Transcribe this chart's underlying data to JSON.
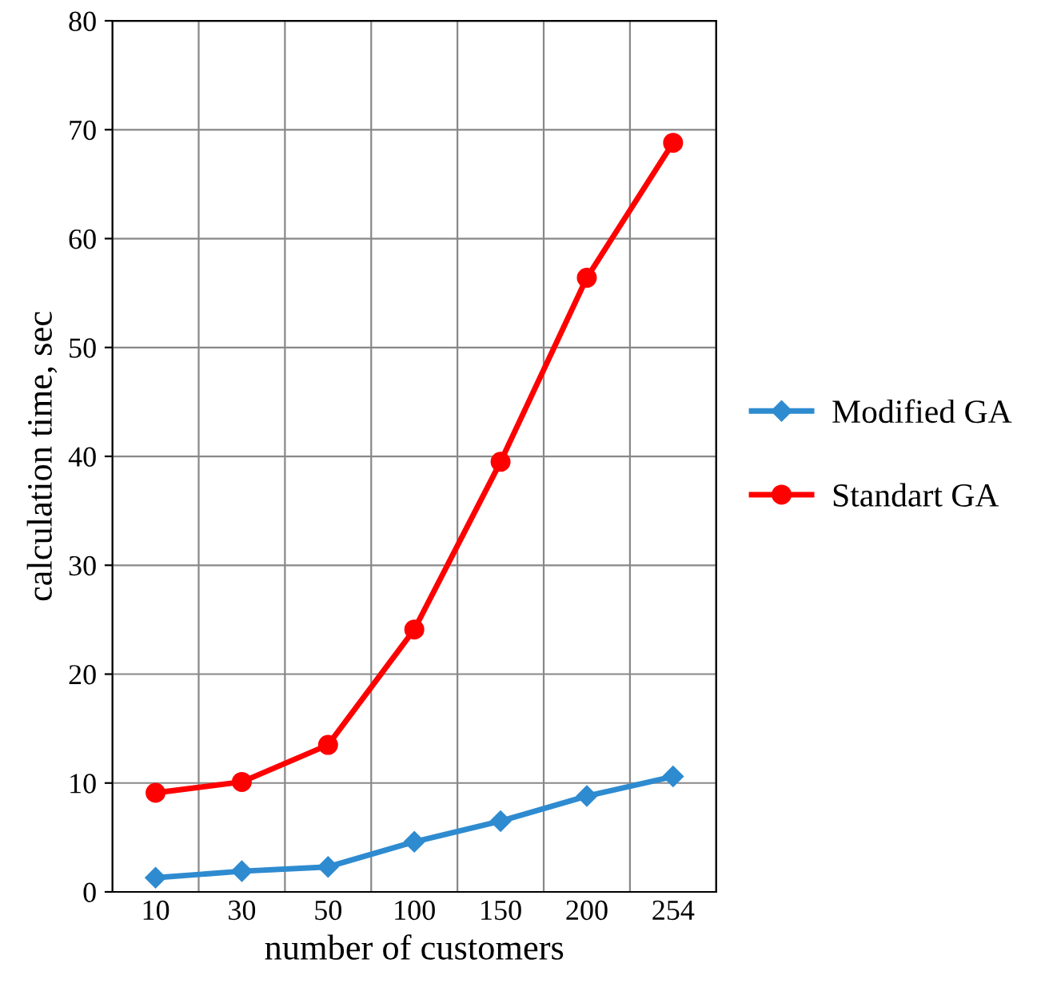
{
  "chart_data": {
    "type": "line",
    "xlabel": "number of customers",
    "ylabel": "calculation time, sec",
    "categories": [
      "10",
      "30",
      "50",
      "100",
      "150",
      "200",
      "254"
    ],
    "series": [
      {
        "name": "Modified GA",
        "color": "#2e8bd0",
        "marker": "diamond",
        "values": [
          1.3,
          1.9,
          2.3,
          4.6,
          6.5,
          8.8,
          10.6
        ]
      },
      {
        "name": "Standart GA",
        "color": "#ff0000",
        "marker": "circle",
        "values": [
          9.1,
          10.1,
          13.5,
          24.1,
          39.5,
          56.4,
          68.8
        ]
      }
    ],
    "ylim": [
      0,
      80
    ],
    "yticks": [
      0,
      10,
      20,
      30,
      40,
      50,
      60,
      70,
      80
    ],
    "grid": true,
    "legend": "right",
    "line_style": "solid"
  }
}
